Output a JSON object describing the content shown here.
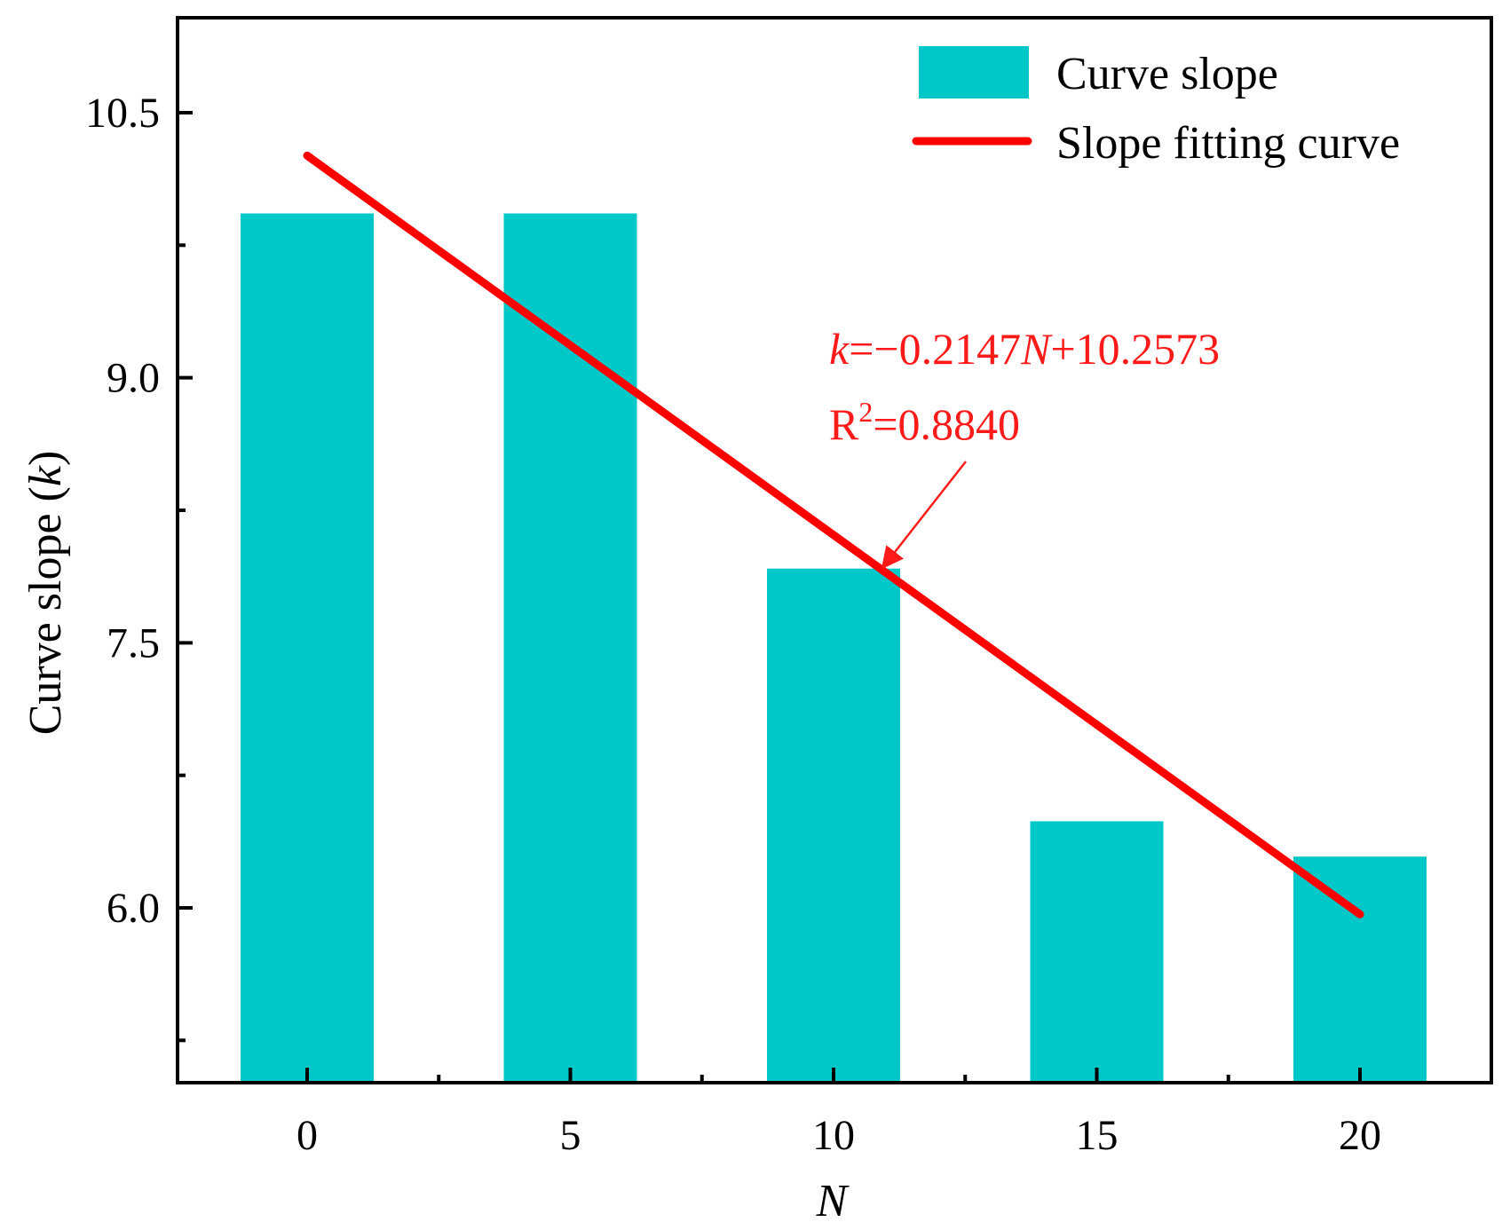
{
  "chart_data": {
    "type": "bar",
    "x_label": "N",
    "y_label": {
      "prefix": "Curve slope (",
      "var": "k",
      "suffix": ")"
    },
    "categories": [
      0,
      5,
      10,
      15,
      20
    ],
    "x_tick_labels": [
      "0",
      "5",
      "10",
      "15",
      "20"
    ],
    "ylim": [
      5.0,
      11.0
    ],
    "y_ticks": [
      6.0,
      7.5,
      9.0,
      10.5
    ],
    "y_tick_labels": [
      "6.0",
      "7.5",
      "9.0",
      "10.5"
    ],
    "y_minor_ticks": [
      5.25,
      6.75,
      8.25,
      9.75
    ],
    "x_minor_ticks": [
      2.5,
      7.5,
      12.5,
      17.5
    ],
    "series": [
      {
        "name": "Curve slope",
        "kind": "bar",
        "color": "#00c8c8",
        "values": [
          9.93,
          9.93,
          7.92,
          6.49,
          6.29
        ]
      }
    ],
    "fit": {
      "name": "Slope fitting curve",
      "kind": "line",
      "color": "#ff0000",
      "slope": -0.2147,
      "intercept": 10.2573,
      "x_range": [
        0,
        20
      ]
    },
    "legend": {
      "position": "top-right",
      "entries": [
        "Curve slope",
        "Slope fitting curve"
      ]
    },
    "annotation": {
      "equation": {
        "k": "k",
        "mid": "=−0.2147",
        "n": "N",
        "end": "+10.2573"
      },
      "r2": {
        "r": "R",
        "sup": "2",
        "value": "=0.8840"
      },
      "arrow_to_x": 11
    },
    "grid": false
  }
}
